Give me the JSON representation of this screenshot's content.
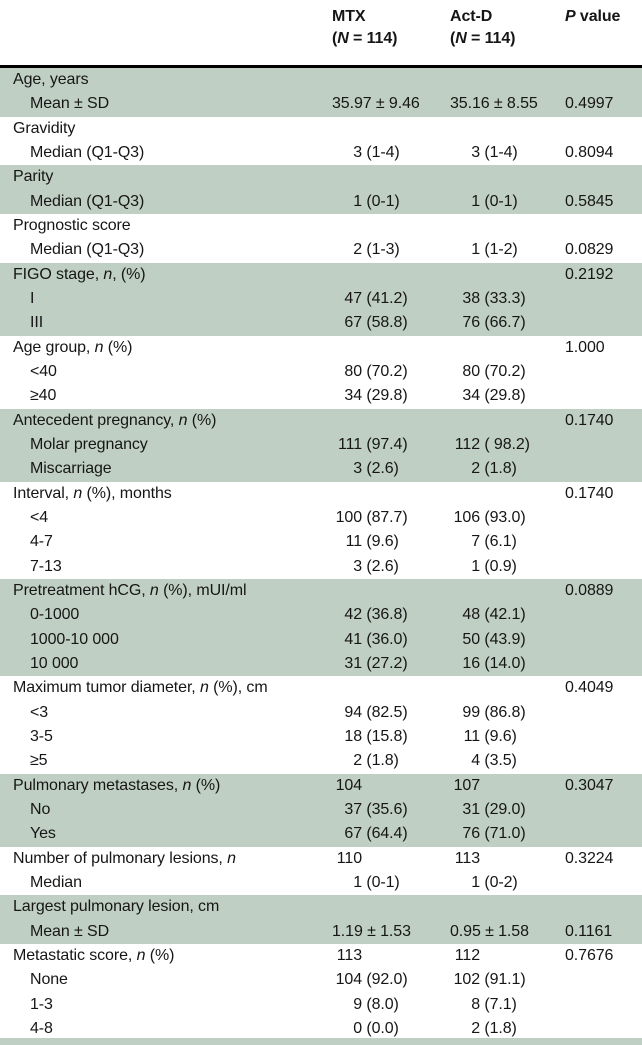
{
  "table": {
    "shade_color": "#c0cfc3",
    "rule_color": "#000000",
    "header": {
      "label_col": "",
      "mtx_name": "MTX",
      "mtx_n": "(*N* = 114)",
      "actd_name": "Act-D",
      "actd_n": "(*N* = 114)",
      "p_label": "*P* value"
    },
    "rows": [
      {
        "label": "Age, years",
        "indent": false,
        "shade": true,
        "mtx": "",
        "actd": "",
        "p": ""
      },
      {
        "label": "Mean ± SD",
        "indent": true,
        "shade": true,
        "mtx": "35.97 ± 9.46",
        "actd": "35.16 ± 8.55",
        "p": "0.4997"
      },
      {
        "label": "Gravidity",
        "indent": false,
        "shade": false,
        "mtx": "",
        "actd": "",
        "p": ""
      },
      {
        "label": "Median (Q1-Q3)",
        "indent": true,
        "shade": false,
        "mtx": "3 (1-4)",
        "actd": "3 (1-4)",
        "p": "0.8094"
      },
      {
        "label": "Parity",
        "indent": false,
        "shade": true,
        "mtx": "",
        "actd": "",
        "p": ""
      },
      {
        "label": "Median (Q1-Q3)",
        "indent": true,
        "shade": true,
        "mtx": "1 (0-1)",
        "actd": "1 (0-1)",
        "p": "0.5845"
      },
      {
        "label": "Prognostic score",
        "indent": false,
        "shade": false,
        "mtx": "",
        "actd": "",
        "p": ""
      },
      {
        "label": "Median (Q1-Q3)",
        "indent": true,
        "shade": false,
        "mtx": "2 (1-3)",
        "actd": "1 (1-2)",
        "p": "0.0829"
      },
      {
        "label": "FIGO stage, *n*, (%)",
        "indent": false,
        "shade": true,
        "mtx": "",
        "actd": "",
        "p": "0.2192"
      },
      {
        "label": "I",
        "indent": true,
        "shade": true,
        "mtx": "47 (41.2)",
        "actd": "38 (33.3)",
        "p": ""
      },
      {
        "label": "III",
        "indent": true,
        "shade": true,
        "mtx": "67 (58.8)",
        "actd": "76 (66.7)",
        "p": ""
      },
      {
        "label": "Age group, *n* (%)",
        "indent": false,
        "shade": false,
        "mtx": "",
        "actd": "",
        "p": "1.000"
      },
      {
        "label": "<40",
        "indent": true,
        "shade": false,
        "mtx": "80 (70.2)",
        "actd": "80 (70.2)",
        "p": ""
      },
      {
        "label": "≥40",
        "indent": true,
        "shade": false,
        "mtx": "34 (29.8)",
        "actd": "34 (29.8)",
        "p": ""
      },
      {
        "label": "Antecedent pregnancy, *n* (%)",
        "indent": false,
        "shade": true,
        "mtx": "",
        "actd": "",
        "p": "0.1740"
      },
      {
        "label": "Molar pregnancy",
        "indent": true,
        "shade": true,
        "mtx": "111 (97.4)",
        "actd": "112 ( 98.2)",
        "p": ""
      },
      {
        "label": "Miscarriage",
        "indent": true,
        "shade": true,
        "mtx": "3 (2.6)",
        "actd": "2 (1.8)",
        "p": ""
      },
      {
        "label": "Interval, *n* (%), months",
        "indent": false,
        "shade": false,
        "mtx": "",
        "actd": "",
        "p": "0.1740"
      },
      {
        "label": "<4",
        "indent": true,
        "shade": false,
        "mtx": "100 (87.7)",
        "actd": "106 (93.0)",
        "p": ""
      },
      {
        "label": "4-7",
        "indent": true,
        "shade": false,
        "mtx": "11 (9.6)",
        "actd": "7 (6.1)",
        "p": ""
      },
      {
        "label": "7-13",
        "indent": true,
        "shade": false,
        "mtx": "3 (2.6)",
        "actd": "1 (0.9)",
        "p": ""
      },
      {
        "label": "Pretreatment hCG, *n* (%), mUI/ml",
        "indent": false,
        "shade": true,
        "mtx": "",
        "actd": "",
        "p": "0.0889"
      },
      {
        "label": "0-1000",
        "indent": true,
        "shade": true,
        "mtx": "42 (36.8)",
        "actd": "48 (42.1)",
        "p": ""
      },
      {
        "label": "1000-10 000",
        "indent": true,
        "shade": true,
        "mtx": "41 (36.0)",
        "actd": "50 (43.9)",
        "p": ""
      },
      {
        "label": "10 000",
        "indent": true,
        "shade": true,
        "mtx": "31 (27.2)",
        "actd": "16 (14.0)",
        "p": ""
      },
      {
        "label": "Maximum tumor diameter, *n* (%), cm",
        "indent": false,
        "shade": false,
        "mtx": "",
        "actd": "",
        "p": "0.4049"
      },
      {
        "label": "<3",
        "indent": true,
        "shade": false,
        "mtx": "94 (82.5)",
        "actd": "99 (86.8)",
        "p": ""
      },
      {
        "label": "3-5",
        "indent": true,
        "shade": false,
        "mtx": "18 (15.8)",
        "actd": "11 (9.6)",
        "p": ""
      },
      {
        "label": "≥5",
        "indent": true,
        "shade": false,
        "mtx": "2 (1.8)",
        "actd": "4 (3.5)",
        "p": ""
      },
      {
        "label": "Pulmonary metastases, *n* (%)",
        "indent": false,
        "shade": true,
        "mtx": "104",
        "actd": "107",
        "p": "0.3047"
      },
      {
        "label": "No",
        "indent": true,
        "shade": true,
        "mtx": "37 (35.6)",
        "actd": "31 (29.0)",
        "p": ""
      },
      {
        "label": "Yes",
        "indent": true,
        "shade": true,
        "mtx": "67 (64.4)",
        "actd": "76 (71.0)",
        "p": ""
      },
      {
        "label": "Number of pulmonary lesions, *n*",
        "indent": false,
        "shade": false,
        "mtx": "110",
        "actd": "113",
        "p": "0.3224"
      },
      {
        "label": "Median",
        "indent": true,
        "shade": false,
        "mtx": "1 (0-1)",
        "actd": "1 (0-2)",
        "p": ""
      },
      {
        "label": "Largest pulmonary lesion, cm",
        "indent": false,
        "shade": true,
        "mtx": "",
        "actd": "",
        "p": ""
      },
      {
        "label": "Mean ± SD",
        "indent": true,
        "shade": true,
        "mtx": "1.19 ± 1.53",
        "actd": "0.95 ± 1.58",
        "p": "0.1161"
      },
      {
        "label": "Metastatic score, *n* (%)",
        "indent": false,
        "shade": false,
        "mtx": "113",
        "actd": "112",
        "p": "0.7676"
      },
      {
        "label": "None",
        "indent": true,
        "shade": false,
        "mtx": "104 (92.0)",
        "actd": "102 (91.1)",
        "p": ""
      },
      {
        "label": "1-3",
        "indent": true,
        "shade": false,
        "mtx": "9 (8.0)",
        "actd": "8 (7.1)",
        "p": ""
      },
      {
        "label": "4-8",
        "indent": true,
        "shade": false,
        "mtx": "0 (0.0)",
        "actd": "2 (1.8)",
        "p": ""
      }
    ]
  }
}
